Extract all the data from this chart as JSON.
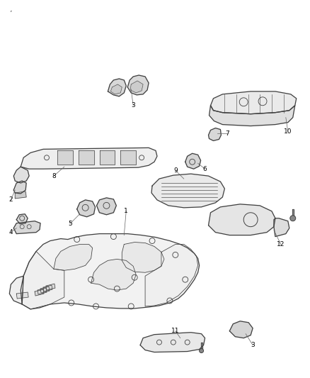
{
  "background_color": "#ffffff",
  "line_color": "#404040",
  "label_color": "#000000",
  "figsize": [
    4.38,
    5.33
  ],
  "dpi": 100,
  "lw_main": 0.9,
  "lw_thin": 0.55,
  "label_fontsize": 6.5
}
